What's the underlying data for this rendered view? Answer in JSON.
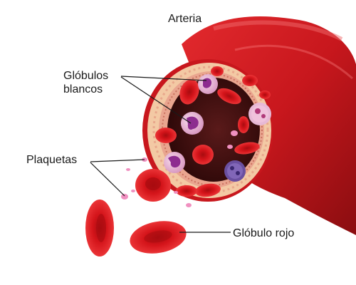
{
  "labels": {
    "artery": "Arteria",
    "white_cells_line1": "Glóbulos",
    "white_cells_line2": "blancos",
    "platelets": "Plaquetas",
    "red_cell": "Glóbulo rojo"
  },
  "colors": {
    "vessel_outer": "#c8171d",
    "vessel_dark": "#8a0d10",
    "wall_tissue": "#f3c9a4",
    "wall_inner": "#e9a58f",
    "lumen": "#3a0d0d",
    "red_cell": "#d4141a",
    "white_cell": "#e7b9d6",
    "white_cell_nucleus": "#8d2c8f",
    "platelet": "#f090c0",
    "leader_line": "#1a1a1a"
  }
}
